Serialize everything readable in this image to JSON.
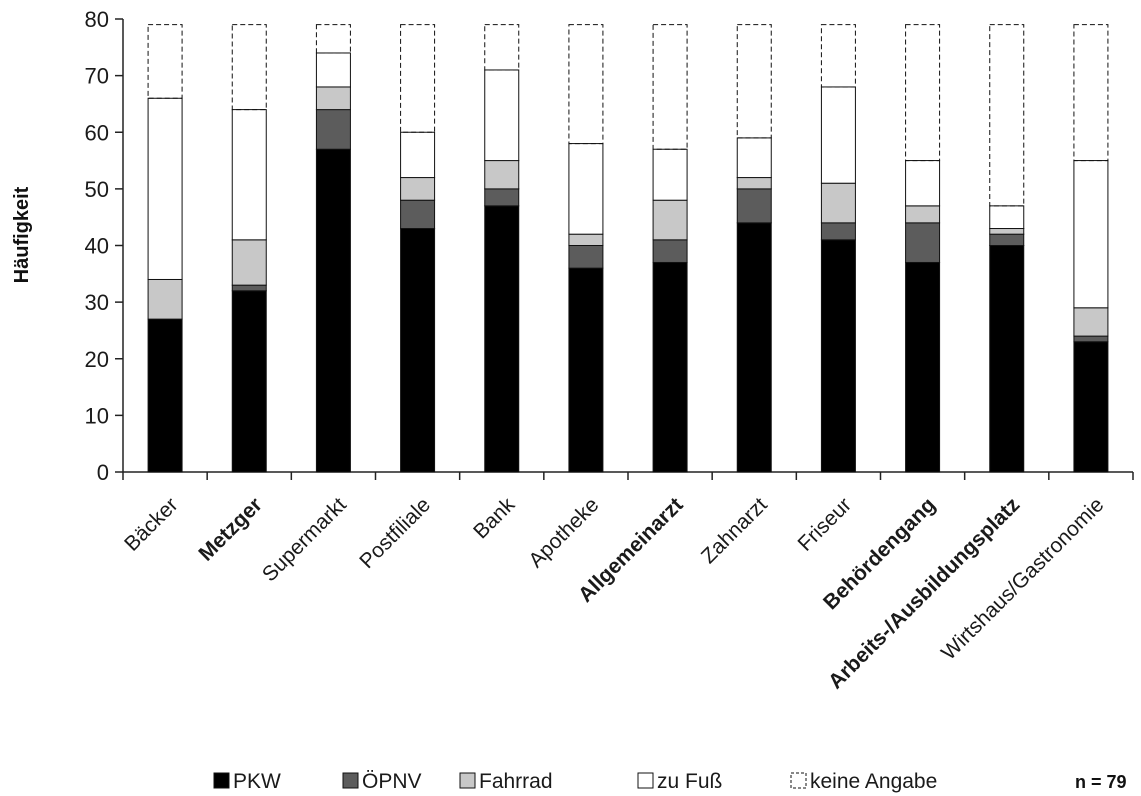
{
  "chart_data": {
    "type": "bar",
    "stacked": true,
    "ylabel": "Häufigkeit",
    "ylim": [
      0,
      80
    ],
    "yticks": [
      0,
      10,
      20,
      30,
      40,
      50,
      60,
      70,
      80
    ],
    "grid": false,
    "legend_position": "bottom",
    "note": "n = 79",
    "categories": [
      "Bäcker",
      "Metzger",
      "Supermarkt",
      "Postfiliale",
      "Bank",
      "Apotheke",
      "Allgemeinarzt",
      "Zahnarzt",
      "Friseur",
      "Behördengang",
      "Arbeits-/Ausbildungsplatz",
      "Wirtshaus/Gastronomie"
    ],
    "bold_categories": [
      "Metzger",
      "Allgemeinarzt",
      "Behördengang",
      "Arbeits-/Ausbildungsplatz"
    ],
    "series": [
      {
        "name": "PKW",
        "color": "#000000",
        "values": [
          27,
          32,
          57,
          43,
          47,
          36,
          37,
          44,
          41,
          37,
          40,
          23
        ]
      },
      {
        "name": "ÖPNV",
        "color": "#5c5c5c",
        "values": [
          0,
          1,
          7,
          5,
          3,
          4,
          4,
          6,
          3,
          7,
          2,
          1
        ]
      },
      {
        "name": "Fahrrad",
        "color": "#c8c8c8",
        "values": [
          7,
          8,
          4,
          4,
          5,
          2,
          7,
          2,
          7,
          3,
          1,
          5
        ]
      },
      {
        "name": "zu Fuß",
        "color": "#ffffff",
        "values": [
          32,
          23,
          6,
          8,
          16,
          16,
          9,
          7,
          17,
          8,
          4,
          26
        ]
      },
      {
        "name": "keine Angabe",
        "color": "#ffffff",
        "dashed": true,
        "values": [
          13,
          15,
          5,
          19,
          8,
          21,
          22,
          20,
          11,
          24,
          32,
          24
        ]
      }
    ]
  }
}
